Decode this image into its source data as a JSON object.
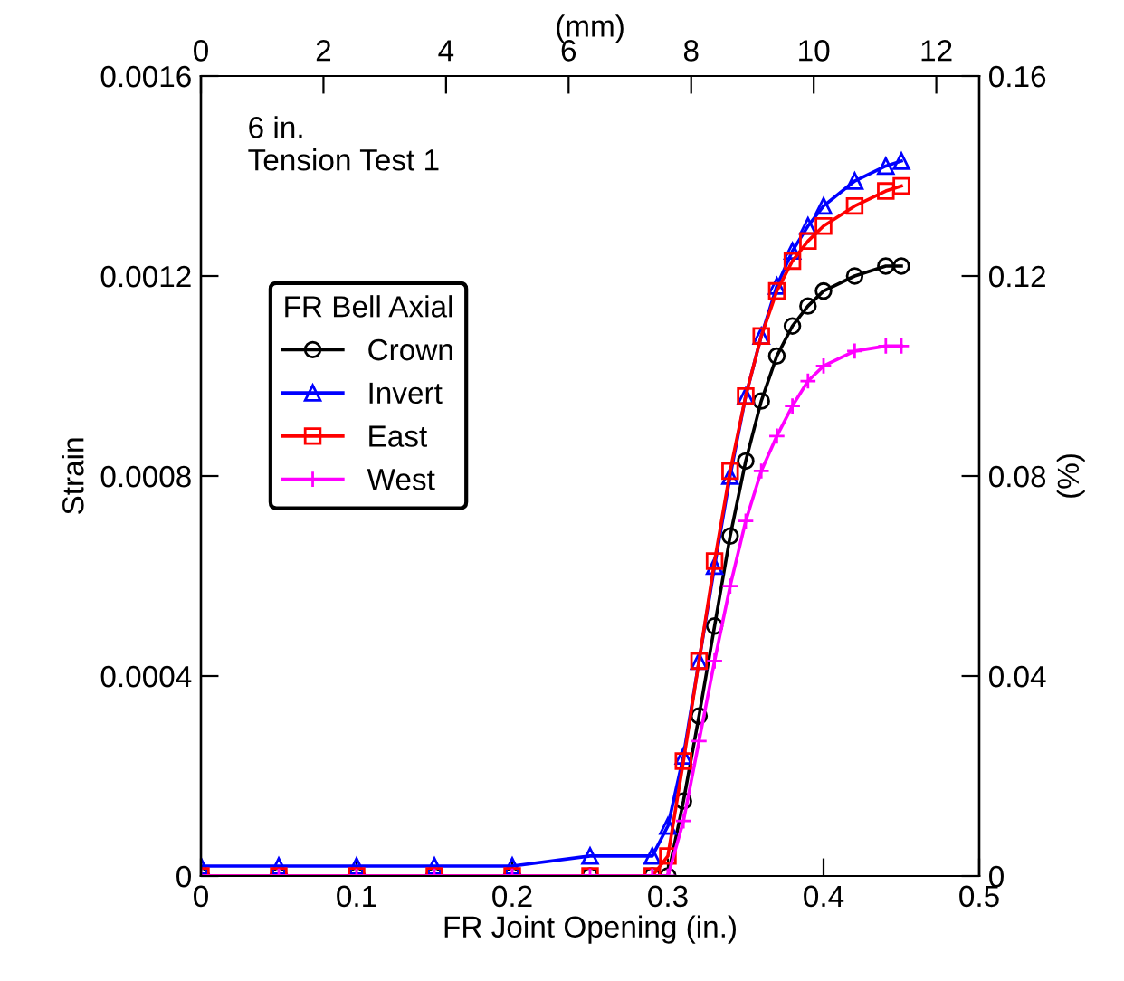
{
  "chart_data": {
    "type": "line",
    "xlabel": "FR Joint Opening (in.)",
    "ylabel": "Strain",
    "y2label": "(%)",
    "x2label": "(mm)",
    "annotations": [
      "6 in.\nTension Test 1"
    ],
    "legend_title": "FR Bell Axial",
    "legend": "top left",
    "grid": false,
    "line_style": "solid",
    "xlim": [
      0,
      0.5
    ],
    "xticks": [
      0,
      0.1,
      0.2,
      0.3,
      0.4,
      0.5
    ],
    "ylim": [
      0,
      0.0016
    ],
    "yticks": [
      0,
      0.0004,
      0.0008,
      0.0012,
      0.0016
    ],
    "y2lim": [
      0,
      0.16
    ],
    "y2ticks": [
      0,
      0.04,
      0.08,
      0.12,
      0.16
    ],
    "x2lim": [
      0,
      12.7
    ],
    "x2ticks": [
      0,
      2,
      4,
      6,
      8,
      10,
      12
    ],
    "x": [
      0,
      0.05,
      0.1,
      0.15,
      0.2,
      0.25,
      0.29,
      0.3,
      0.31,
      0.32,
      0.33,
      0.34,
      0.35,
      0.36,
      0.37,
      0.38,
      0.39,
      0.4,
      0.42,
      0.44,
      0.45
    ],
    "series": [
      {
        "name": "Crown",
        "color": "#000000",
        "marker": "circle",
        "values": [
          0,
          0,
          0,
          0,
          0,
          0,
          0,
          0,
          0.00015,
          0.00032,
          0.0005,
          0.00068,
          0.00083,
          0.00095,
          0.00104,
          0.0011,
          0.00114,
          0.00117,
          0.0012,
          0.00122,
          0.00122
        ]
      },
      {
        "name": "Invert",
        "color": "#0000ff",
        "marker": "triangle",
        "values": [
          2e-05,
          2e-05,
          2e-05,
          2e-05,
          2e-05,
          4e-05,
          4e-05,
          0.0001,
          0.00024,
          0.00043,
          0.00062,
          0.0008,
          0.00096,
          0.00108,
          0.00118,
          0.00125,
          0.0013,
          0.00134,
          0.00139,
          0.00142,
          0.00143
        ]
      },
      {
        "name": "East",
        "color": "#ff0000",
        "marker": "square",
        "values": [
          0,
          0,
          0,
          0,
          0,
          0,
          0,
          4e-05,
          0.00023,
          0.00043,
          0.00063,
          0.00081,
          0.00096,
          0.00108,
          0.00117,
          0.00123,
          0.00127,
          0.0013,
          0.00134,
          0.00137,
          0.00138
        ]
      },
      {
        "name": "West",
        "color": "#ff00ff",
        "marker": "cross",
        "values": [
          0,
          0,
          0,
          0,
          0,
          0,
          0,
          0,
          0.00011,
          0.00027,
          0.00043,
          0.00058,
          0.00071,
          0.00081,
          0.00088,
          0.00094,
          0.00099,
          0.00102,
          0.00105,
          0.00106,
          0.00106
        ]
      }
    ]
  }
}
